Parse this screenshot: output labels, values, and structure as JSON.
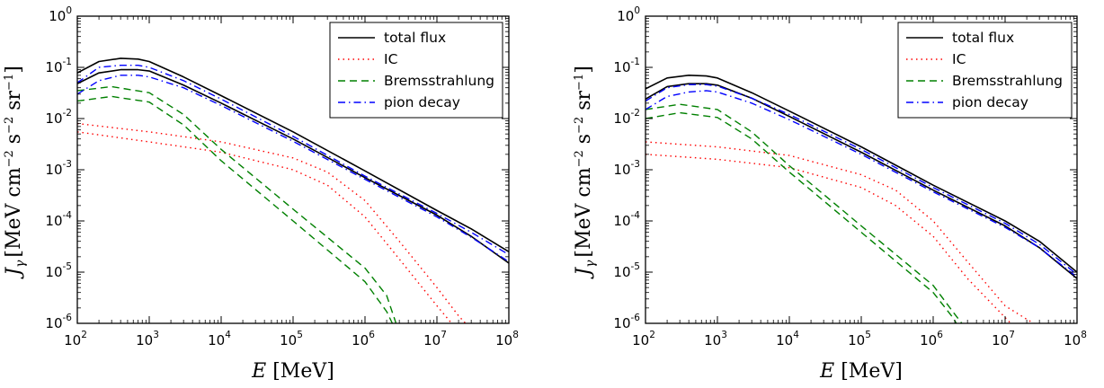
{
  "figure": {
    "background": "#ffffff"
  },
  "chart_data": [
    {
      "type": "line",
      "xscale": "log",
      "yscale": "log",
      "xlim": [
        100,
        100000000
      ],
      "ylim": [
        1e-06,
        1
      ],
      "x_ticks": [
        {
          "base": "10",
          "exp": "2"
        },
        {
          "base": "10",
          "exp": "3"
        },
        {
          "base": "10",
          "exp": "4"
        },
        {
          "base": "10",
          "exp": "5"
        },
        {
          "base": "10",
          "exp": "6"
        },
        {
          "base": "10",
          "exp": "7"
        },
        {
          "base": "10",
          "exp": "8"
        }
      ],
      "y_ticks": [
        {
          "base": "10",
          "exp": "-6"
        },
        {
          "base": "10",
          "exp": "-5"
        },
        {
          "base": "10",
          "exp": "-4"
        },
        {
          "base": "10",
          "exp": "-3"
        },
        {
          "base": "10",
          "exp": "-2"
        },
        {
          "base": "10",
          "exp": "-1"
        },
        {
          "base": "10",
          "exp": "0"
        }
      ],
      "xlabel": {
        "var": "E",
        "unit": " [MeV]"
      },
      "ylabel": {
        "var": "J",
        "sub": "γ",
        "unit_parts": [
          {
            "t": "[MeV cm"
          },
          {
            "sup": "−2"
          },
          {
            "t": " s"
          },
          {
            "sup": "−2"
          },
          {
            "t": " sr"
          },
          {
            "sup": "−1"
          },
          {
            "t": "]"
          }
        ]
      },
      "legend": {
        "position": "top-right",
        "entries": [
          {
            "label": "total flux",
            "color": "#000000",
            "style": "solid"
          },
          {
            "label": "IC",
            "color": "#ff0000",
            "style": "dotted"
          },
          {
            "label": "Bremsstrahlung",
            "color": "#008000",
            "style": "dashed"
          },
          {
            "label": "pion decay",
            "color": "#0000ff",
            "style": "dashdot"
          }
        ]
      },
      "series": [
        {
          "component": "total flux",
          "color": "#000000",
          "style": "solid",
          "x": [
            100,
            200,
            400,
            700,
            1000,
            3000,
            10000,
            100000,
            1000000,
            10000000,
            30000000,
            100000000
          ],
          "y": [
            0.078,
            0.13,
            0.15,
            0.145,
            0.13,
            0.065,
            0.028,
            0.0055,
            0.00095,
            0.00016,
            7e-05,
            2.5e-05
          ]
        },
        {
          "component": "total flux",
          "color": "#000000",
          "style": "solid",
          "x": [
            100,
            200,
            400,
            700,
            1000,
            3000,
            10000,
            100000,
            1000000,
            10000000,
            30000000,
            100000000
          ],
          "y": [
            0.048,
            0.078,
            0.09,
            0.09,
            0.085,
            0.045,
            0.02,
            0.004,
            0.0007,
            0.00013,
            5e-05,
            1.5e-05
          ]
        },
        {
          "component": "IC",
          "color": "#ff0000",
          "style": "dotted",
          "x": [
            100,
            1000,
            10000,
            100000,
            300000,
            1000000,
            3000000,
            10000000,
            20000000,
            25000000
          ],
          "y": [
            0.008,
            0.0055,
            0.0035,
            0.0017,
            0.0009,
            0.00025,
            4e-05,
            5e-06,
            1.4e-06,
            1e-06
          ]
        },
        {
          "component": "IC",
          "color": "#ff0000",
          "style": "dotted",
          "x": [
            100,
            1000,
            10000,
            100000,
            300000,
            1000000,
            3000000,
            10000000,
            16000000
          ],
          "y": [
            0.0055,
            0.0035,
            0.0022,
            0.001,
            0.0005,
            0.00012,
            1.8e-05,
            2.2e-06,
            1e-06
          ]
        },
        {
          "component": "Bremsstrahlung",
          "color": "#008000",
          "style": "dashed",
          "x": [
            100,
            300,
            1000,
            3000,
            10000,
            100000,
            1000000,
            2000000,
            2700000
          ],
          "y": [
            0.035,
            0.042,
            0.032,
            0.012,
            0.0025,
            0.00017,
            1.2e-05,
            3.5e-06,
            1e-06
          ]
        },
        {
          "component": "Bremsstrahlung",
          "color": "#008000",
          "style": "dashed",
          "x": [
            100,
            300,
            1000,
            3000,
            10000,
            100000,
            1000000,
            2000000,
            2400000
          ],
          "y": [
            0.022,
            0.027,
            0.021,
            0.0075,
            0.0015,
            0.0001,
            6.5e-06,
            1.7e-06,
            1e-06
          ]
        },
        {
          "component": "pion decay",
          "color": "#0000ff",
          "style": "dashdot",
          "x": [
            100,
            200,
            400,
            700,
            1000,
            3000,
            10000,
            100000,
            1000000,
            10000000,
            30000000,
            100000000
          ],
          "y": [
            0.05,
            0.1,
            0.11,
            0.11,
            0.1,
            0.055,
            0.024,
            0.0045,
            0.00075,
            0.00014,
            6e-05,
            2.2e-05
          ]
        },
        {
          "component": "pion decay",
          "color": "#0000ff",
          "style": "dashdot",
          "x": [
            100,
            200,
            400,
            700,
            1000,
            3000,
            10000,
            100000,
            1000000,
            10000000,
            30000000,
            100000000
          ],
          "y": [
            0.03,
            0.055,
            0.07,
            0.07,
            0.065,
            0.04,
            0.018,
            0.0036,
            0.00065,
            0.00012,
            4.8e-05,
            1.6e-05
          ]
        }
      ]
    },
    {
      "type": "line",
      "xscale": "log",
      "yscale": "log",
      "xlim": [
        100,
        100000000
      ],
      "ylim": [
        1e-06,
        1
      ],
      "x_ticks": [
        {
          "base": "10",
          "exp": "2"
        },
        {
          "base": "10",
          "exp": "3"
        },
        {
          "base": "10",
          "exp": "4"
        },
        {
          "base": "10",
          "exp": "5"
        },
        {
          "base": "10",
          "exp": "6"
        },
        {
          "base": "10",
          "exp": "7"
        },
        {
          "base": "10",
          "exp": "8"
        }
      ],
      "y_ticks": [
        {
          "base": "10",
          "exp": "-6"
        },
        {
          "base": "10",
          "exp": "-5"
        },
        {
          "base": "10",
          "exp": "-4"
        },
        {
          "base": "10",
          "exp": "-3"
        },
        {
          "base": "10",
          "exp": "-2"
        },
        {
          "base": "10",
          "exp": "-1"
        },
        {
          "base": "10",
          "exp": "0"
        }
      ],
      "xlabel": {
        "var": "E",
        "unit": " [MeV]"
      },
      "ylabel": {
        "var": "J",
        "sub": "γ",
        "unit_parts": [
          {
            "t": "[MeV cm"
          },
          {
            "sup": "−2"
          },
          {
            "t": " s"
          },
          {
            "sup": "−2"
          },
          {
            "t": " sr"
          },
          {
            "sup": "−1"
          },
          {
            "t": "]"
          }
        ]
      },
      "legend": {
        "position": "top-right",
        "entries": [
          {
            "label": "total flux",
            "color": "#000000",
            "style": "solid"
          },
          {
            "label": "IC",
            "color": "#ff0000",
            "style": "dotted"
          },
          {
            "label": "Bremsstrahlung",
            "color": "#008000",
            "style": "dashed"
          },
          {
            "label": "pion decay",
            "color": "#0000ff",
            "style": "dashdot"
          }
        ]
      },
      "series": [
        {
          "component": "total flux",
          "color": "#000000",
          "style": "solid",
          "x": [
            100,
            200,
            400,
            700,
            1000,
            3000,
            10000,
            100000,
            1000000,
            10000000,
            30000000,
            100000000
          ],
          "y": [
            0.038,
            0.062,
            0.07,
            0.068,
            0.062,
            0.032,
            0.014,
            0.0028,
            0.0005,
            0.0001,
            4e-05,
            1e-05
          ]
        },
        {
          "component": "total flux",
          "color": "#000000",
          "style": "solid",
          "x": [
            100,
            200,
            400,
            700,
            1000,
            3000,
            10000,
            100000,
            1000000,
            10000000,
            30000000,
            100000000
          ],
          "y": [
            0.024,
            0.042,
            0.048,
            0.048,
            0.045,
            0.025,
            0.011,
            0.0022,
            0.0004,
            8e-05,
            3e-05,
            7.5e-06
          ]
        },
        {
          "component": "IC",
          "color": "#ff0000",
          "style": "dotted",
          "x": [
            100,
            1000,
            10000,
            100000,
            300000,
            1000000,
            3000000,
            10000000,
            20000000,
            25000000
          ],
          "y": [
            0.0035,
            0.0028,
            0.0019,
            0.0008,
            0.0004,
            0.0001,
            1.6e-05,
            2.2e-06,
            1.2e-06,
            1e-06
          ]
        },
        {
          "component": "IC",
          "color": "#ff0000",
          "style": "dotted",
          "x": [
            100,
            1000,
            10000,
            100000,
            300000,
            1000000,
            3000000,
            10000000,
            12000000
          ],
          "y": [
            0.002,
            0.0016,
            0.0011,
            0.00045,
            0.0002,
            5e-05,
            7.5e-06,
            1.3e-06,
            1e-06
          ]
        },
        {
          "component": "Bremsstrahlung",
          "color": "#008000",
          "style": "dashed",
          "x": [
            100,
            300,
            1000,
            3000,
            10000,
            100000,
            1000000,
            2000000,
            2500000
          ],
          "y": [
            0.015,
            0.019,
            0.015,
            0.0055,
            0.0012,
            8e-05,
            5.5e-06,
            1.5e-06,
            1e-06
          ]
        },
        {
          "component": "Bremsstrahlung",
          "color": "#008000",
          "style": "dashed",
          "x": [
            100,
            300,
            1000,
            3000,
            10000,
            100000,
            1000000,
            1800000,
            2100000
          ],
          "y": [
            0.01,
            0.013,
            0.0105,
            0.004,
            0.0009,
            6e-05,
            4e-06,
            1.4e-06,
            1e-06
          ]
        },
        {
          "component": "pion decay",
          "color": "#0000ff",
          "style": "dashdot",
          "x": [
            100,
            200,
            400,
            700,
            1000,
            3000,
            10000,
            100000,
            1000000,
            10000000,
            30000000,
            100000000
          ],
          "y": [
            0.022,
            0.04,
            0.046,
            0.046,
            0.043,
            0.025,
            0.012,
            0.0025,
            0.00045,
            9e-05,
            3.5e-05,
            9e-06
          ]
        },
        {
          "component": "pion decay",
          "color": "#0000ff",
          "style": "dashdot",
          "x": [
            100,
            200,
            400,
            700,
            1000,
            3000,
            10000,
            100000,
            1000000,
            10000000,
            30000000,
            100000000
          ],
          "y": [
            0.015,
            0.027,
            0.033,
            0.035,
            0.033,
            0.02,
            0.0095,
            0.002,
            0.00037,
            7.5e-05,
            3e-05,
            8e-06
          ]
        }
      ]
    }
  ]
}
